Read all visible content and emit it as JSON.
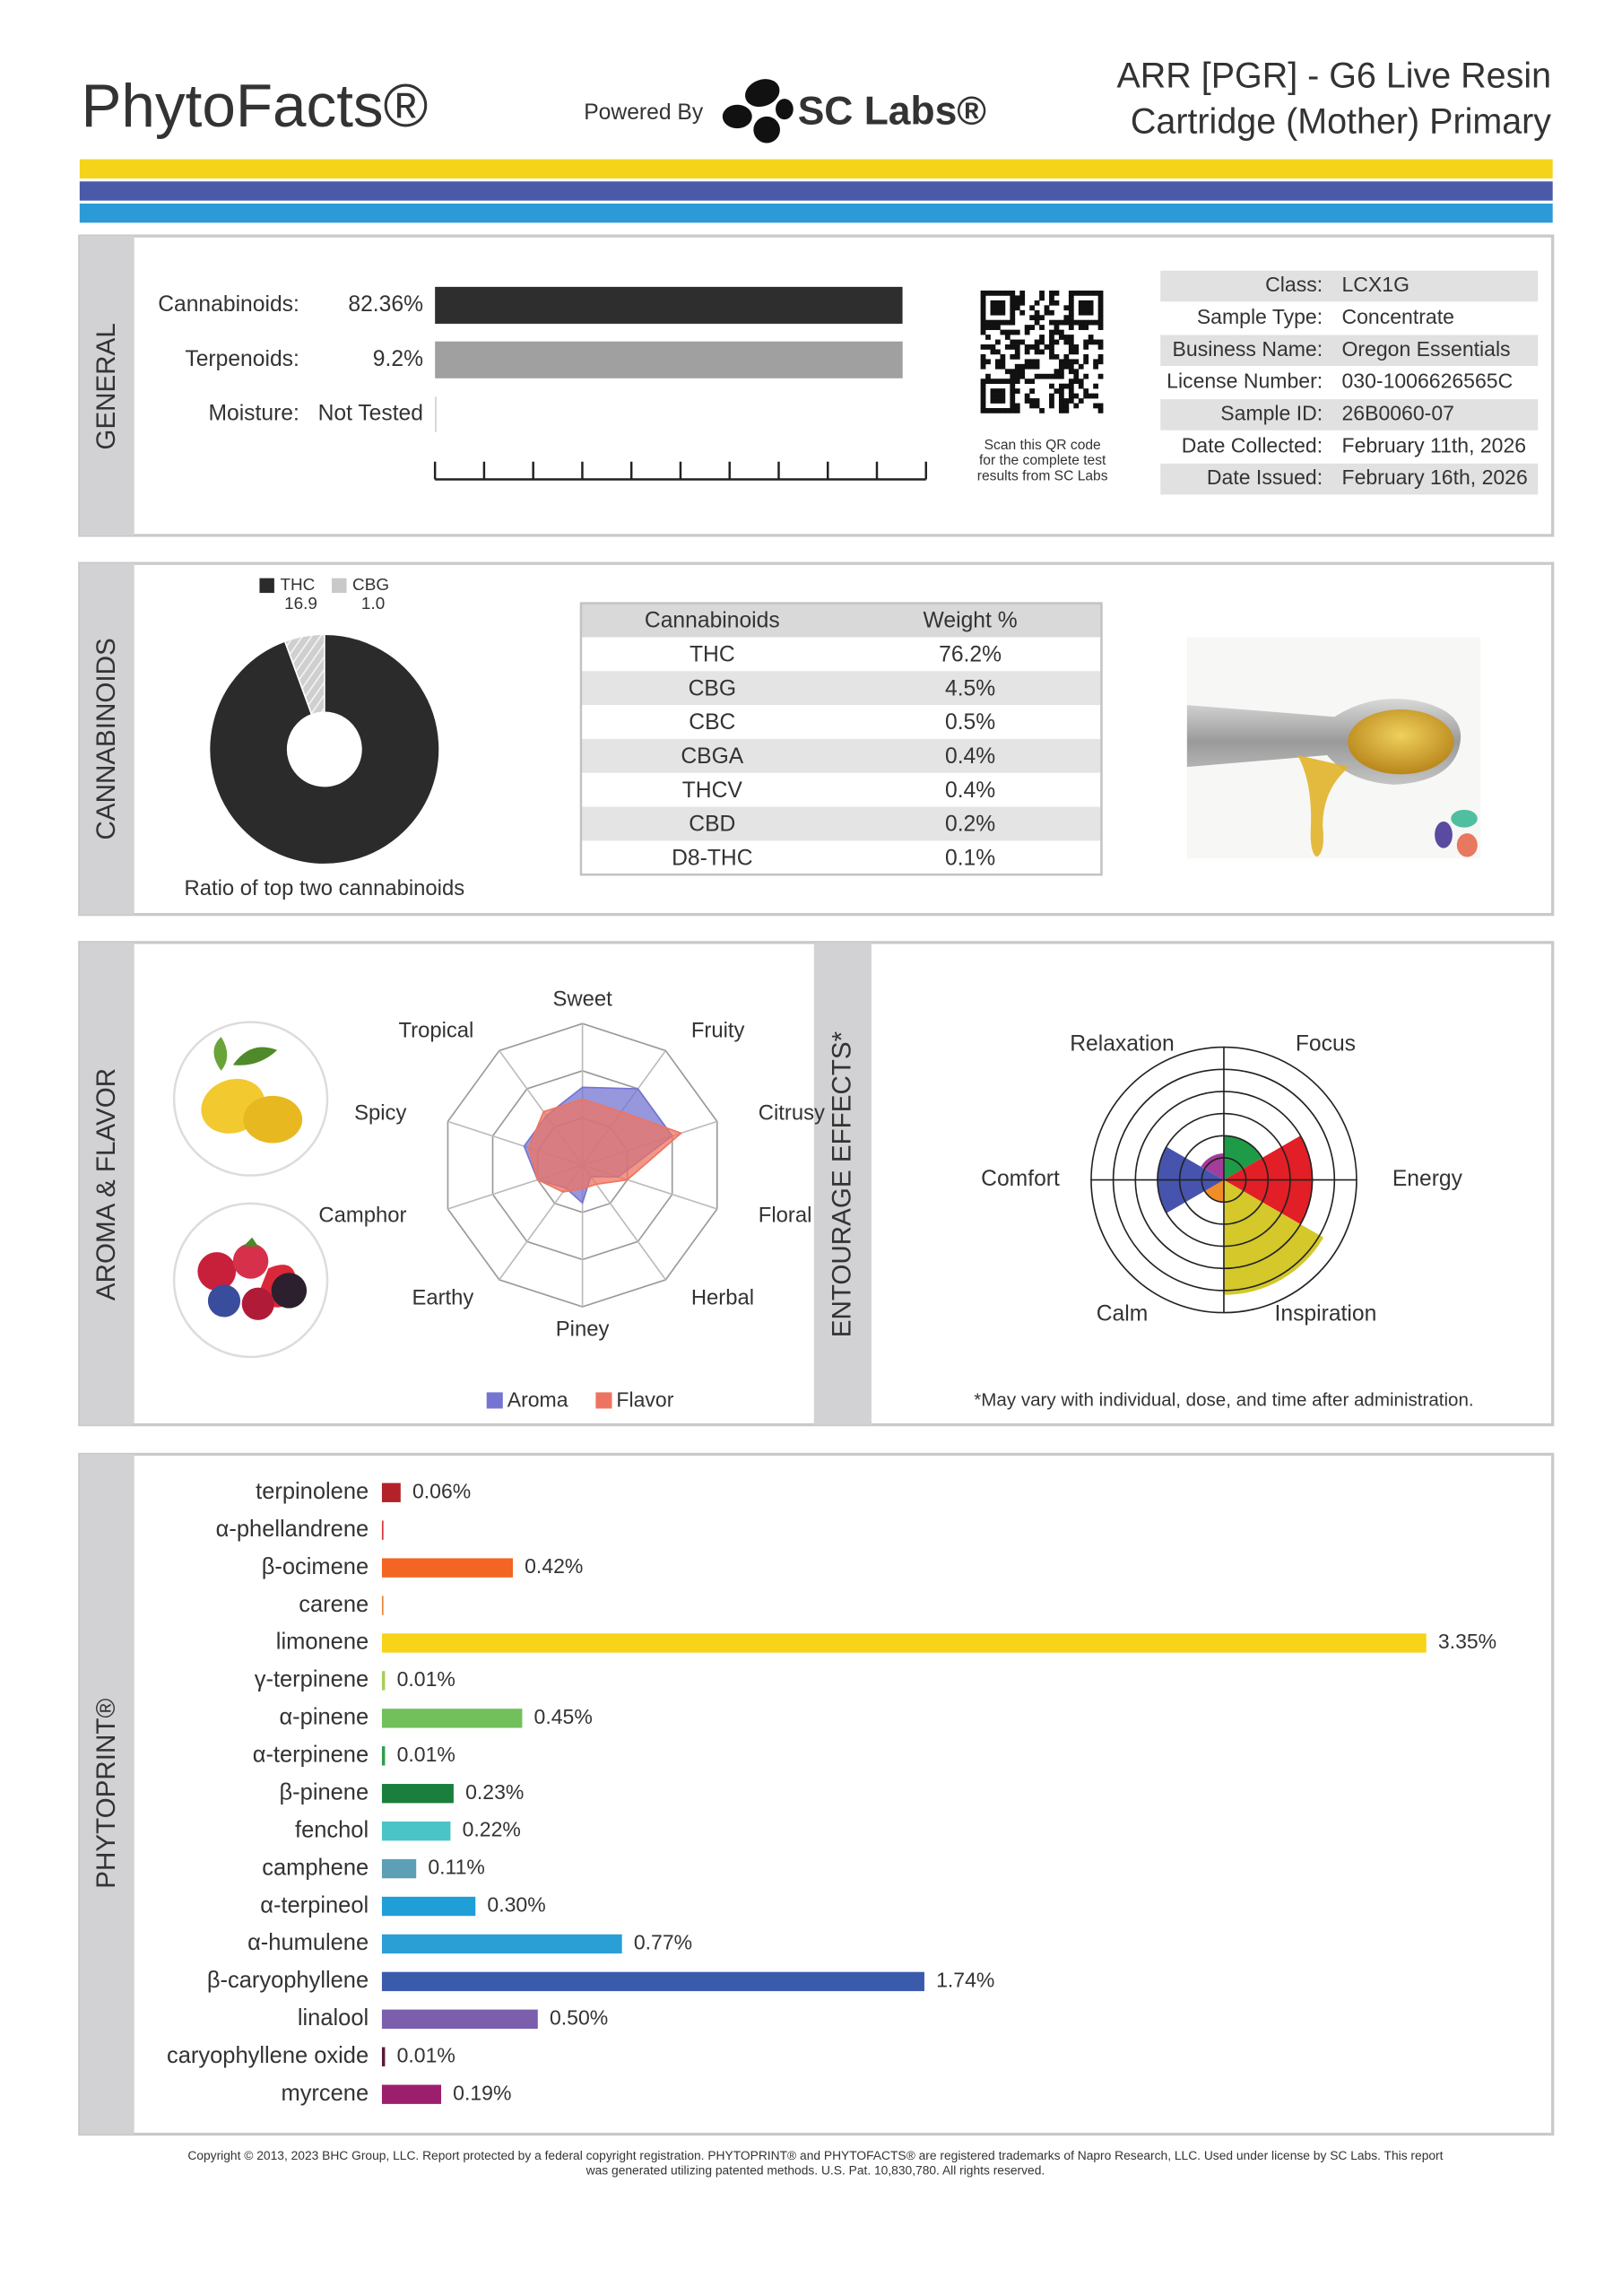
{
  "header": {
    "brand": "PhytoFacts®",
    "powered_by": "Powered By",
    "lab": "SC Labs®",
    "title_lines": [
      "ARR [PGR] - G6 Live Resin",
      "Cartridge (Mother) Primary"
    ]
  },
  "general": {
    "section_label": "GENERAL",
    "bars": [
      {
        "label": "Cannabinoids:",
        "value_label": "82.36%",
        "value": 82.36,
        "xlim": [
          0,
          86.5
        ],
        "color": "#2e2e2e"
      },
      {
        "label": "Terpenoids:",
        "value_label": "9.2%",
        "value": 9.2,
        "xlim": [
          0,
          9.66
        ],
        "color": "#a0a0a0"
      },
      {
        "label": "Moisture:",
        "value_label": "Not Tested",
        "value": null,
        "xlim": [
          0,
          100
        ],
        "color": "#a0a0a0"
      }
    ],
    "qr_caption": [
      "Scan this QR code",
      "for the complete test",
      "results from SC Labs"
    ],
    "info": [
      [
        "Class:",
        "LCX1G"
      ],
      [
        "Sample Type:",
        "Concentrate"
      ],
      [
        "Business Name:",
        "Oregon Essentials"
      ],
      [
        "License Number:",
        "030-1006626565C"
      ],
      [
        "Sample ID:",
        "26B0060-07"
      ],
      [
        "Date Collected:",
        "February 11th, 2026"
      ],
      [
        "Date Issued:",
        "February 16th, 2026"
      ]
    ]
  },
  "cannabinoid_table": {
    "header": [
      "Cannabinoids",
      "Weight %"
    ],
    "rows": [
      [
        "THC",
        "76.2%"
      ],
      [
        "CBG",
        "4.5%"
      ],
      [
        "CBC",
        "0.5%"
      ],
      [
        "CBGA",
        "0.4%"
      ],
      [
        "THCV",
        "0.4%"
      ],
      [
        "CBD",
        "0.2%"
      ],
      [
        "D8-THC",
        "0.1%"
      ]
    ]
  },
  "chart_data": [
    {
      "type": "pie",
      "title": "CANNABINOIDS",
      "caption": "Ratio of top two cannabinoids",
      "categories": [
        "THC",
        "CBG"
      ],
      "values": [
        16.9,
        1.0
      ],
      "value_labels": [
        "16.9",
        "1.0"
      ],
      "colors": [
        "#2b2b2b",
        "#c9c9c9"
      ]
    },
    {
      "type": "radar",
      "title": "AROMA & FLAVOR",
      "categories": [
        "Sweet",
        "Fruity",
        "Citrusy",
        "Floral",
        "Herbal",
        "Piney",
        "Earthy",
        "Camphor",
        "Spicy",
        "Tropical"
      ],
      "series": [
        {
          "name": "Aroma",
          "color": "#7474d2",
          "values": [
            1.65,
            2.0,
            2.0,
            0.8,
            0.3,
            0.8,
            0.6,
            1.0,
            1.3,
            1.3
          ]
        },
        {
          "name": "Flavor",
          "color": "#ee7462",
          "values": [
            1.4,
            1.4,
            2.2,
            1.0,
            0.5,
            0.5,
            0.7,
            1.0,
            1.2,
            1.4
          ]
        }
      ],
      "ylim": [
        0,
        3
      ],
      "yticks": [
        1,
        2,
        3
      ]
    },
    {
      "type": "polar_area",
      "title": "ENTOURAGE EFFECTS*",
      "categories": [
        "Focus",
        "Energy",
        "Inspiration",
        "Calm",
        "Comfort",
        "Relaxation"
      ],
      "values": [
        2,
        4,
        5.2,
        1,
        3,
        1.2
      ],
      "colors": [
        "#1e9b46",
        "#e21f26",
        "#d4c82a",
        "#f28c28",
        "#4654ad",
        "#a23d9b"
      ],
      "ylim": [
        0,
        6
      ],
      "yticks": [
        1,
        2,
        3,
        4,
        5,
        6
      ],
      "footnote": "*May vary with individual, dose, and time after administration."
    },
    {
      "type": "hbar",
      "title": "PHYTOPRINT®",
      "categories": [
        "terpinolene",
        "α-phellandrene",
        "β-ocimene",
        "carene",
        "limonene",
        "γ-terpinene",
        "α-pinene",
        "α-terpinene",
        "β-pinene",
        "fenchol",
        "camphene",
        "α-terpineol",
        "α-humulene",
        "β-caryophyllene",
        "linalool",
        "caryophyllene oxide",
        "myrcene"
      ],
      "values": [
        0.06,
        0.005,
        0.42,
        0.005,
        3.35,
        0.01,
        0.45,
        0.01,
        0.23,
        0.22,
        0.11,
        0.3,
        0.77,
        1.74,
        0.5,
        0.01,
        0.19
      ],
      "value_labels": [
        "0.06%",
        null,
        "0.42%",
        null,
        "3.35%",
        "0.01%",
        "0.45%",
        "0.01%",
        "0.23%",
        "0.22%",
        "0.11%",
        "0.30%",
        "0.77%",
        "1.74%",
        "0.50%",
        "0.01%",
        "0.19%"
      ],
      "colors": [
        "#b22228",
        "#d9363e",
        "#f26522",
        "#e8883a",
        "#f7d417",
        "#a8cf5a",
        "#72c05b",
        "#2e9e4f",
        "#1a7f3c",
        "#4bc4c8",
        "#5da0b5",
        "#1f9ed8",
        "#2a9fd6",
        "#3a5bab",
        "#7b5fad",
        "#5a1a3a",
        "#9c1f6e"
      ],
      "xlim": [
        0,
        3.5
      ]
    }
  ],
  "footer": [
    "Copyright © 2013, 2023 BHC Group, LLC. Report protected by a federal copyright registration. PHYTOPRINT® and PHYTOFACTS® are registered trademarks of Napro Research, LLC. Used under license by SC Labs. This report",
    "was generated utilizing patented methods. U.S. Pat. 10,830,780. All rights reserved."
  ]
}
